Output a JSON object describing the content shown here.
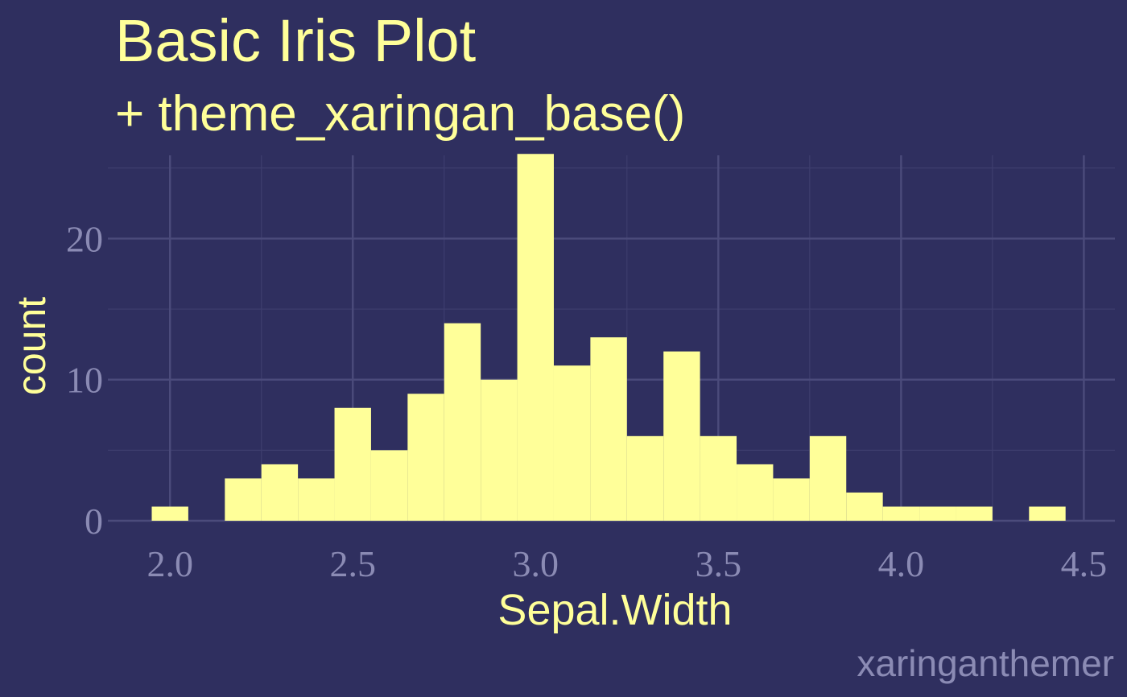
{
  "colors": {
    "background": "#2F2F5F",
    "bar_fill": "#FFFF99",
    "text": "#FFFF99",
    "tick_text": "#8B8BB4",
    "caption": "#8B8BB4",
    "grid_major": "#4B4B7B",
    "grid_minor": "#3E3E6E"
  },
  "chart_data": {
    "type": "bar",
    "title": "Basic Iris Plot",
    "subtitle": "+ theme_xaringan_base()",
    "xlabel": "Sepal.Width",
    "ylabel": "count",
    "caption": "xaringanthemer",
    "bin_width": 0.1,
    "bin_centers": [
      2.0,
      2.1,
      2.2,
      2.3,
      2.4,
      2.5,
      2.6,
      2.7,
      2.8,
      2.9,
      3.0,
      3.1,
      3.2,
      3.3,
      3.4,
      3.5,
      3.6,
      3.7,
      3.8,
      3.9,
      4.0,
      4.1,
      4.2,
      4.3,
      4.4
    ],
    "values": [
      1,
      0,
      3,
      4,
      3,
      8,
      5,
      9,
      14,
      10,
      26,
      11,
      13,
      6,
      12,
      6,
      4,
      3,
      6,
      2,
      1,
      1,
      1,
      0,
      1
    ],
    "x_ticks": [
      2.0,
      2.5,
      3.0,
      3.5,
      4.0,
      4.5
    ],
    "x_tick_labels": [
      "2.0",
      "2.5",
      "3.0",
      "3.5",
      "4.0",
      "4.5"
    ],
    "y_ticks": [
      0,
      10,
      20
    ],
    "y_tick_labels": [
      "0",
      "10",
      "20"
    ],
    "xlim": [
      1.83,
      4.585
    ],
    "ylim": [
      0,
      25.9
    ],
    "grid": true,
    "legend": "none"
  }
}
